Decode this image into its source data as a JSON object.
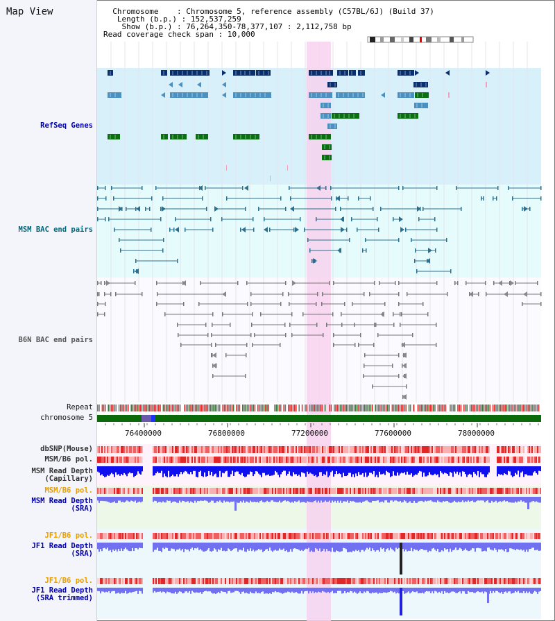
{
  "page": {
    "title": "Map View"
  },
  "info": {
    "chromosome_label": "Chromosome",
    "chromosome_value": "Chromosome 5, reference assembly (C57BL/6J) (Build 37)",
    "length_label": "Length (b.p.)",
    "length_value": "152,537,259",
    "show_label": "Show (b.p.)",
    "show_value": "76,264,350-78,377,107 : 2,112,758 bp",
    "span_label": "Read coverage check span",
    "span_value": "10,000"
  },
  "tracks": {
    "refseq": "RefSeq Genes",
    "msm_bac": "MSM BAC end pairs",
    "b6n_bac": "B6N BAC end pairs",
    "repeat": "Repeat",
    "chromosome": "chromosome 5",
    "dbsnp": "dbSNP(Mouse)",
    "msm_b6_pol": "MSM/B6 pol.",
    "msm_depth_cap_1": "MSM Read Depth",
    "msm_depth_cap_2": "(Capillary)",
    "msm_b6_pol_sra": "MSM/B6 pol.",
    "msm_depth_sra_1": "MSM Read Depth",
    "msm_depth_sra_2": "(SRA)",
    "jf1_b6_pol": "JF1/B6 pol.",
    "jf1_depth_1": "JF1 Read Depth",
    "jf1_depth_2": "(SRA)",
    "jf1_b6_pol_trim": "JF1/B6 pol.",
    "jf1_depth_trim_1": "JF1 Read Depth",
    "jf1_depth_trim_2": "(SRA trimmed)"
  },
  "axis": {
    "ticks": [
      "76400000",
      "76800000",
      "77200000",
      "77600000",
      "78000000"
    ]
  },
  "colors": {
    "refseq_bg": "#d8f0fa",
    "bac_bg": "#e6fbfb",
    "highlight": "#f7d2ee",
    "gene_dark": "#0a2f6e",
    "gene_mid": "#4a90c0",
    "gene_green": "#0a6f10",
    "msm_line": "#2a7090",
    "b6n_line": "#777777",
    "chrom_green": "#0b6b0b",
    "depth_blue": "#1010ee",
    "depth_light": "#7070f0",
    "pol_red": "#ee3030",
    "label_blue": "#0000aa",
    "label_teal": "#006677",
    "label_orange": "#e8a000"
  }
}
